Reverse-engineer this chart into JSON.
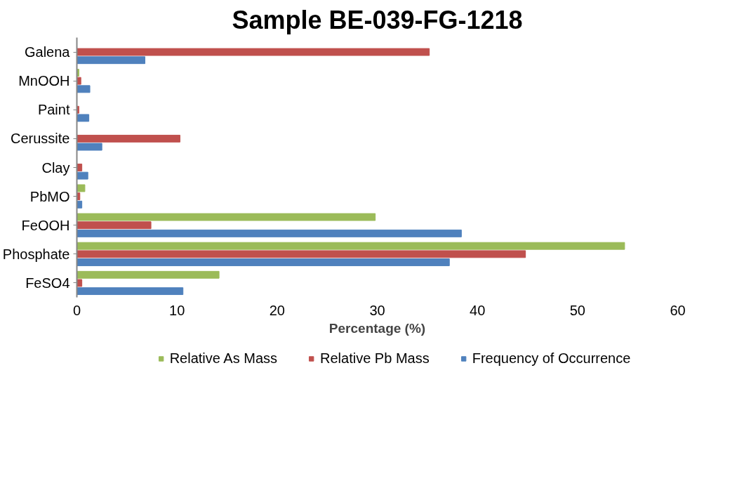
{
  "chart_data": {
    "type": "bar",
    "orientation": "horizontal",
    "title": "Sample BE-039-FG-1218",
    "xlabel": "Percentage (%)",
    "categories": [
      "Galena",
      "MnOOH",
      "Paint",
      "Cerussite",
      "Clay",
      "PbMO",
      "FeOOH",
      "Phosphate",
      "FeSO4"
    ],
    "series": [
      {
        "name": "Relative As Mass",
        "color": "#9bbb59",
        "values": [
          null,
          0.2,
          null,
          null,
          null,
          0.8,
          29.8,
          54.7,
          14.2
        ]
      },
      {
        "name": "Relative Pb Mass",
        "color": "#c0504d",
        "values": [
          35.2,
          0.4,
          0.2,
          10.3,
          0.5,
          0.3,
          7.4,
          44.8,
          0.5
        ]
      },
      {
        "name": "Frequency of Occurrence",
        "color": "#4f81bd",
        "values": [
          6.8,
          1.3,
          1.2,
          2.5,
          1.1,
          0.5,
          38.4,
          37.2,
          10.6
        ]
      }
    ],
    "xlim": [
      0,
      60
    ],
    "xticks": [
      0,
      10,
      20,
      30,
      40,
      50,
      60
    ],
    "grid": false,
    "legend": "bottom"
  }
}
